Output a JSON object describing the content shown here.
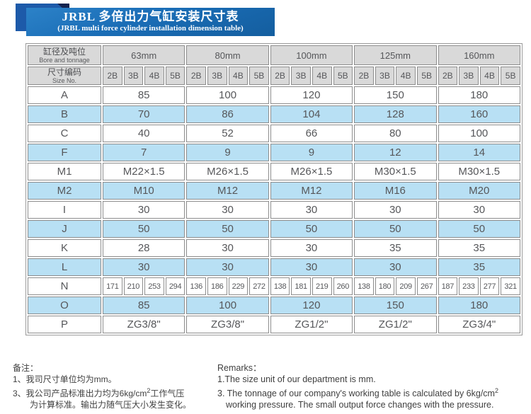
{
  "banner": {
    "title_zh": "JRBL 多倍出力气缸安装尺寸表",
    "title_en": "(JRBL multi force cylinder installation dimension table)"
  },
  "table": {
    "header": {
      "col1_zh": "缸径及吨位",
      "col1_en": "Bore and tonnage",
      "col2_zh": "尺寸编码",
      "col2_en": "Size No.",
      "bores": [
        "63mm",
        "80mm",
        "100mm",
        "125mm",
        "160mm"
      ],
      "sizes": [
        "2B",
        "3B",
        "4B",
        "5B"
      ]
    },
    "rows": [
      {
        "label": "A",
        "type": "merged",
        "values": [
          "85",
          "100",
          "120",
          "150",
          "180"
        ]
      },
      {
        "label": "B",
        "type": "merged",
        "values": [
          "70",
          "86",
          "104",
          "128",
          "160"
        ]
      },
      {
        "label": "C",
        "type": "merged",
        "values": [
          "40",
          "52",
          "66",
          "80",
          "100"
        ]
      },
      {
        "label": "F",
        "type": "merged",
        "values": [
          "7",
          "9",
          "9",
          "12",
          "14"
        ]
      },
      {
        "label": "M1",
        "type": "merged",
        "values": [
          "M22×1.5",
          "M26×1.5",
          "M26×1.5",
          "M30×1.5",
          "M30×1.5"
        ]
      },
      {
        "label": "M2",
        "type": "merged",
        "values": [
          "M10",
          "M12",
          "M12",
          "M16",
          "M20"
        ]
      },
      {
        "label": "I",
        "type": "merged",
        "values": [
          "30",
          "30",
          "30",
          "30",
          "30"
        ]
      },
      {
        "label": "J",
        "type": "merged",
        "values": [
          "50",
          "50",
          "50",
          "50",
          "50"
        ]
      },
      {
        "label": "K",
        "type": "merged",
        "values": [
          "28",
          "30",
          "30",
          "35",
          "35"
        ]
      },
      {
        "label": "L",
        "type": "merged",
        "values": [
          "30",
          "30",
          "30",
          "30",
          "35"
        ]
      },
      {
        "label": "N",
        "type": "per-size",
        "values": [
          [
            "171",
            "210",
            "253",
            "294"
          ],
          [
            "136",
            "186",
            "229",
            "272"
          ],
          [
            "138",
            "181",
            "219",
            "260"
          ],
          [
            "138",
            "180",
            "209",
            "267"
          ],
          [
            "187",
            "233",
            "277",
            "321"
          ]
        ]
      },
      {
        "label": "O",
        "type": "merged",
        "values": [
          "85",
          "100",
          "120",
          "150",
          "180"
        ]
      },
      {
        "label": "P",
        "type": "merged",
        "values": [
          "ZG3/8\"",
          "ZG3/8\"",
          "ZG1/2\"",
          "ZG1/2\"",
          "ZG3/4\""
        ]
      }
    ]
  },
  "notes_zh": {
    "title": "备注：",
    "line1": "1、我司尺寸单位均为mm。",
    "line3_pre": "3、我公司产品标准出力均为6kg/cm",
    "line3_sup": "2",
    "line3_post": "工作气压",
    "line4": "为计算标准。输出力随气压大小发生变化。"
  },
  "notes_en": {
    "title": "Remarks：",
    "line1": "1.The size unit of our department is mm.",
    "line3_pre": "3. The tonnage of our company's working table is calculated by 6kg/cm",
    "line3_sup": "2",
    "line4": "working pressure. The small output force changes with the pressure."
  },
  "colors": {
    "banner_blue": "#1a6db6",
    "decor_square_blue": "#1d5aa9",
    "decor_fold_navy": "#13234f",
    "header_gray": "#d9d9d9",
    "stripe_blue": "#b8e0f4",
    "border_gray": "#8d8d8d",
    "text_gray": "#56575a"
  }
}
